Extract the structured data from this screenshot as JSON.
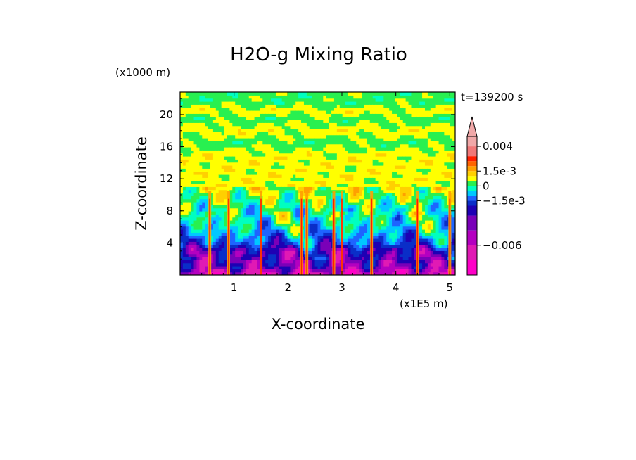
{
  "chart_data": {
    "type": "heatmap",
    "title": "H2O-g Mixing Ratio",
    "xlabel": "X-coordinate",
    "ylabel": "Z-coordinate",
    "x_scale_label": "(x1E5 m)",
    "y_scale_label": "(x1000 m)",
    "time_label": "t=139200 s",
    "xlim": [
      0,
      5.1
    ],
    "ylim": [
      0,
      22.8
    ],
    "x_ticks": [
      1,
      2,
      3,
      4,
      5
    ],
    "y_ticks": [
      4,
      8,
      12,
      16,
      20
    ],
    "colorbar": {
      "range": [
        -0.009,
        0.005
      ],
      "levels": [
        {
          "from": -0.009,
          "to": -0.0075,
          "color": "#ff00c8"
        },
        {
          "from": -0.0075,
          "to": -0.006,
          "color": "#e01ab4"
        },
        {
          "from": -0.006,
          "to": -0.0045,
          "color": "#b400c0"
        },
        {
          "from": -0.0045,
          "to": -0.003,
          "color": "#7a00b8"
        },
        {
          "from": -0.003,
          "to": -0.002,
          "color": "#1e00b4"
        },
        {
          "from": -0.002,
          "to": -0.0015,
          "color": "#0a2ec8"
        },
        {
          "from": -0.0015,
          "to": -0.001,
          "color": "#1e64ff"
        },
        {
          "from": -0.001,
          "to": -0.0005,
          "color": "#00c8ff"
        },
        {
          "from": -0.0005,
          "to": 0,
          "color": "#00ffc0"
        },
        {
          "from": 0,
          "to": 0.0005,
          "color": "#28f050"
        },
        {
          "from": 0.0005,
          "to": 0.001,
          "color": "#ffff00"
        },
        {
          "from": 0.001,
          "to": 0.0015,
          "color": "#ffd000"
        },
        {
          "from": 0.0015,
          "to": 0.002,
          "color": "#ffa000"
        },
        {
          "from": 0.002,
          "to": 0.0025,
          "color": "#ff6400"
        },
        {
          "from": 0.0025,
          "to": 0.003,
          "color": "#ff1e00"
        },
        {
          "from": 0.003,
          "to": 0.004,
          "color": "#f07878"
        },
        {
          "from": 0.004,
          "to": 0.005,
          "color": "#f0a8a8"
        }
      ],
      "tick_labels": [
        {
          "value": 0.004,
          "label": "0.004"
        },
        {
          "value": 0.0015,
          "label": "1.5e-3"
        },
        {
          "value": 0,
          "label": "0"
        },
        {
          "value": -0.0015,
          "label": "−1.5e-3"
        },
        {
          "value": -0.006,
          "label": "−0.006"
        }
      ],
      "extend": "max"
    },
    "field_profile": [
      {
        "z": 0.0,
        "level": 1
      },
      {
        "z": 1.0,
        "level": 3
      },
      {
        "z": 3.0,
        "level": 3
      },
      {
        "z": 4.0,
        "level": 5
      },
      {
        "z": 6.0,
        "level": 7
      },
      {
        "z": 8.0,
        "level": 8
      },
      {
        "z": 9.5,
        "level": 9
      },
      {
        "z": 11.0,
        "level": 10
      },
      {
        "z": 15.0,
        "level": 10
      },
      {
        "z": 16.5,
        "level": 9
      },
      {
        "z": 18.0,
        "level": 10
      },
      {
        "z": 19.5,
        "level": 9
      },
      {
        "z": 20.5,
        "level": 10
      },
      {
        "z": 21.5,
        "level": 9
      },
      {
        "z": 22.8,
        "level": 9
      }
    ],
    "updrafts_x": [
      0.55,
      0.9,
      1.5,
      2.25,
      2.35,
      2.85,
      3.0,
      3.55,
      4.4,
      5.0
    ]
  }
}
